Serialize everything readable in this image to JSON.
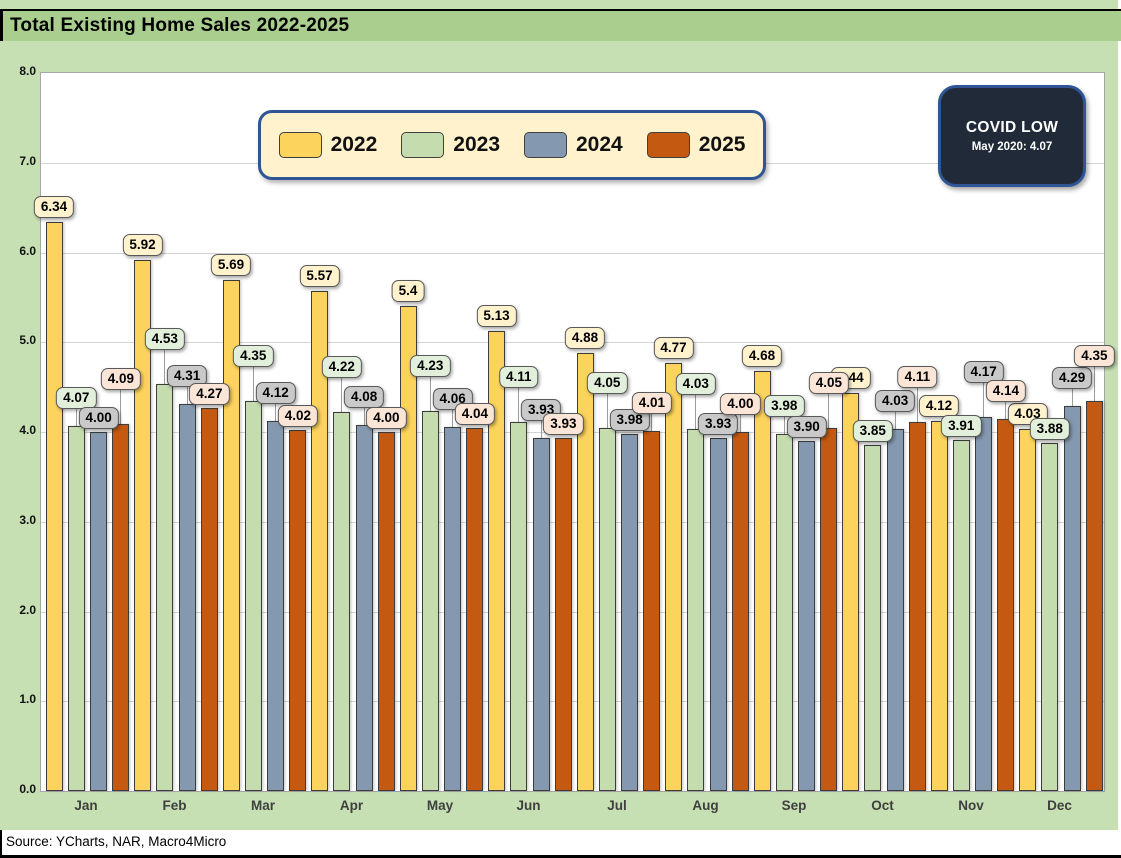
{
  "title": "Total Existing Home Sales 2022-2025",
  "source_note": "Source: YCharts, NAR, Macro4Micro",
  "covid_callout": {
    "line1": "COVID LOW",
    "line2": "May 2020: 4.07"
  },
  "colors": {
    "page_bg": "#C6E0B4",
    "title_bar_bg": "#A9CE8E",
    "plot_bg": "#FFFFFF",
    "gridline": "#D4D4D4",
    "legend_bg": "#FFF2CC",
    "legend_border": "#2F5597",
    "covid_bg": "#202A38",
    "covid_border": "#2F5597",
    "bar_border": "#3C3C3C",
    "label_border": "#595959"
  },
  "chart_data": {
    "type": "bar",
    "title": "Total Existing Home Sales 2022-2025",
    "categories": [
      "Jan",
      "Feb",
      "Mar",
      "Apr",
      "May",
      "Jun",
      "Jul",
      "Aug",
      "Sep",
      "Oct",
      "Nov",
      "Dec"
    ],
    "series": [
      {
        "name": "2022",
        "color": "#FCD35C",
        "label_bg": "#FFF2CC",
        "values": [
          6.34,
          5.92,
          5.69,
          5.57,
          5.4,
          5.13,
          4.88,
          4.77,
          4.68,
          4.44,
          4.12,
          4.03
        ],
        "labels": [
          "6.34",
          "5.92",
          "5.69",
          "5.57",
          "5.4",
          "5.13",
          "4.88",
          "4.77",
          "4.68",
          "4.44",
          "4.12",
          "4.03"
        ]
      },
      {
        "name": "2023",
        "color": "#C5DCAF",
        "label_bg": "#E2EFDA",
        "values": [
          4.07,
          4.53,
          4.35,
          4.22,
          4.23,
          4.11,
          4.05,
          4.03,
          3.98,
          3.85,
          3.91,
          3.88
        ],
        "labels": [
          "4.07",
          "4.53",
          "4.35",
          "4.22",
          "4.23",
          "4.11",
          "4.05",
          "4.03",
          "3.98",
          "3.85",
          "3.91",
          "3.88"
        ]
      },
      {
        "name": "2024",
        "color": "#8499B0",
        "label_bg": "#C9C9C9",
        "values": [
          4.0,
          4.31,
          4.12,
          4.08,
          4.06,
          3.93,
          3.98,
          3.93,
          3.9,
          4.03,
          4.17,
          4.29
        ],
        "labels": [
          "4.00",
          "4.31",
          "4.12",
          "4.08",
          "4.06",
          "3.93",
          "3.98",
          "3.93",
          "3.90",
          "4.03",
          "4.17",
          "4.29"
        ]
      },
      {
        "name": "2025",
        "color": "#C45A12",
        "label_bg": "#FBE5D6",
        "values": [
          4.09,
          4.27,
          4.02,
          4.0,
          4.04,
          3.93,
          4.01,
          4.0,
          4.05,
          4.11,
          4.14,
          4.35
        ],
        "labels": [
          "4.09",
          "4.27",
          "4.02",
          "4.00",
          "4.04",
          "3.93",
          "4.01",
          "4.00",
          "4.05",
          "4.11",
          "4.14",
          "4.35"
        ]
      }
    ],
    "ylim": [
      0,
      8
    ],
    "ytick_step": 1,
    "ytick_labels": [
      "0.0",
      "1.0",
      "2.0",
      "3.0",
      "4.0",
      "5.0",
      "6.0",
      "7.0",
      "8.0"
    ],
    "xlabel": "",
    "ylabel": "",
    "grid": true,
    "legend_position": "top-center"
  }
}
